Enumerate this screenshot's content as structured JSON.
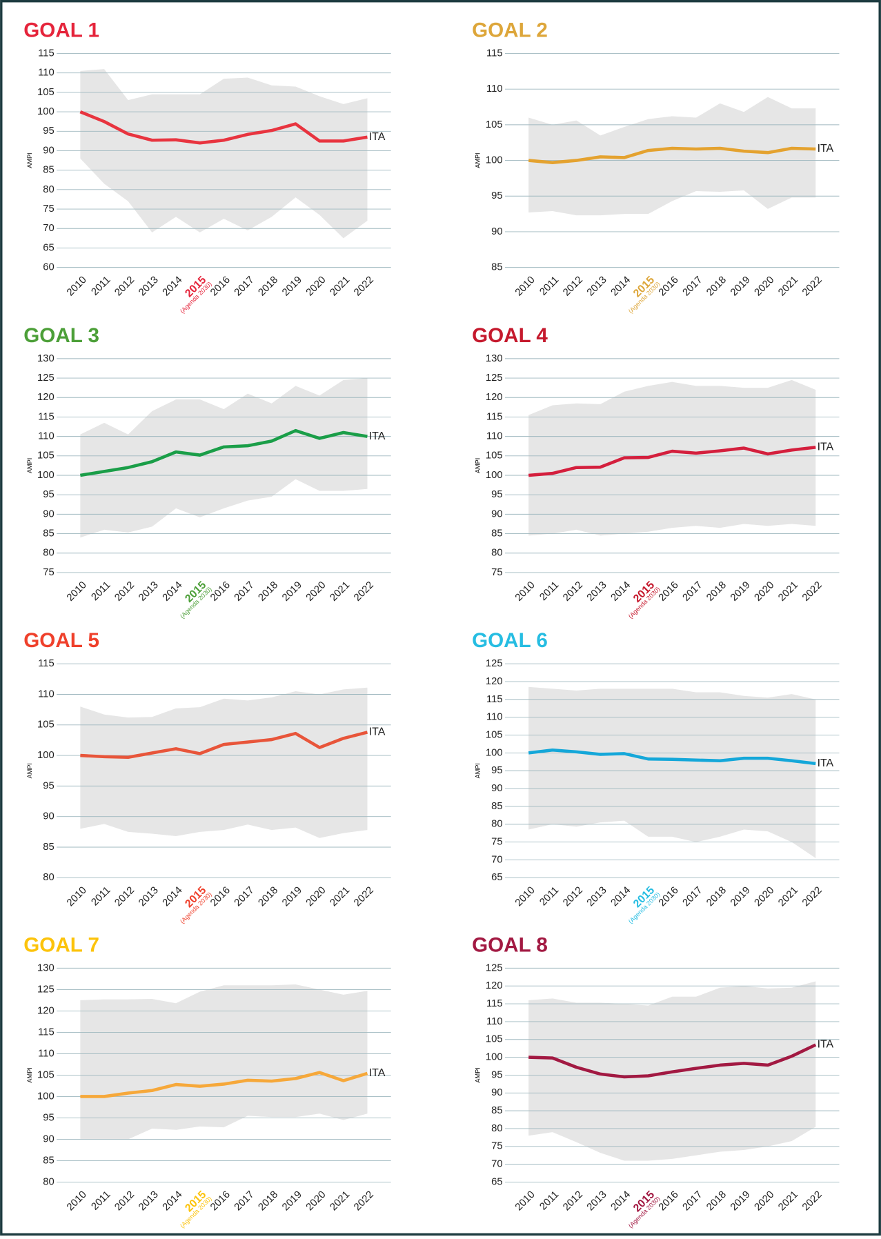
{
  "chart_data": [
    {
      "type": "line",
      "title": "GOAL 1",
      "color": "#e5243b",
      "y_label": "AMPI",
      "annotation": "(Agenda 2030)",
      "highlight": "2015",
      "categories": [
        "2010",
        "2011",
        "2012",
        "2013",
        "2014",
        "2015",
        "2016",
        "2017",
        "2018",
        "2019",
        "2020",
        "2021",
        "2022"
      ],
      "ylim": [
        60,
        115
      ],
      "yticks": [
        60,
        65,
        70,
        75,
        80,
        85,
        90,
        95,
        100,
        105,
        110,
        115
      ],
      "band": {
        "color": "#e6e6e6",
        "upper": [
          110.5,
          111,
          103,
          104.5,
          104.5,
          104.5,
          108.5,
          108.8,
          106.8,
          106.5,
          104,
          102,
          103.5
        ],
        "lower": [
          88,
          81.5,
          77,
          69,
          73,
          69,
          72.5,
          69.5,
          73,
          78,
          73.5,
          67.5,
          72
        ]
      },
      "series": [
        {
          "name": "ITA",
          "color": "#e8343f",
          "values": [
            100,
            97.5,
            94.3,
            92.7,
            92.8,
            92,
            92.7,
            94.2,
            95.2,
            96.9,
            92.5,
            92.5,
            93.5
          ]
        }
      ]
    },
    {
      "type": "line",
      "title": "GOAL 2",
      "color": "#dda63a",
      "y_label": "AMPI",
      "annotation": "(Agenda 2030)",
      "highlight": "2015",
      "categories": [
        "2010",
        "2011",
        "2012",
        "2013",
        "2014",
        "2015",
        "2016",
        "2017",
        "2018",
        "2019",
        "2020",
        "2021",
        "2022"
      ],
      "ylim": [
        85,
        115
      ],
      "yticks": [
        85,
        90,
        95,
        100,
        105,
        110,
        115
      ],
      "band": {
        "color": "#e6e6e6",
        "upper": [
          106,
          105,
          105.6,
          103.5,
          104.7,
          105.8,
          106.2,
          106,
          108,
          106.8,
          108.9,
          107.3,
          107.3
        ],
        "lower": [
          92.7,
          92.9,
          92.3,
          92.3,
          92.5,
          92.5,
          94.3,
          95.7,
          95.6,
          95.8,
          93.2,
          94.8,
          94.8
        ]
      },
      "series": [
        {
          "name": "ITA",
          "color": "#e4a22f",
          "values": [
            100,
            99.7,
            100,
            100.5,
            100.4,
            101.4,
            101.7,
            101.6,
            101.7,
            101.3,
            101.1,
            101.7,
            101.6
          ]
        }
      ]
    },
    {
      "type": "line",
      "title": "GOAL 3",
      "color": "#4c9f38",
      "y_label": "AMPI",
      "annotation": "(Agenda 2030)",
      "highlight": "2015",
      "categories": [
        "2010",
        "2011",
        "2012",
        "2013",
        "2014",
        "2015",
        "2016",
        "2017",
        "2018",
        "2019",
        "2020",
        "2021",
        "2022"
      ],
      "ylim": [
        75,
        130
      ],
      "yticks": [
        75,
        80,
        85,
        90,
        95,
        100,
        105,
        110,
        115,
        120,
        125,
        130
      ],
      "band": {
        "color": "#e6e6e6",
        "upper": [
          110.5,
          113.5,
          110.5,
          116.5,
          119.5,
          119.5,
          117,
          121,
          118.5,
          123,
          120.5,
          124.5,
          125
        ],
        "lower": [
          84,
          86,
          85.3,
          86.8,
          91.5,
          89.2,
          91.5,
          93.5,
          94.5,
          99,
          96,
          96,
          96.5
        ]
      },
      "series": [
        {
          "name": "ITA",
          "color": "#1a9e48",
          "values": [
            100,
            101,
            102,
            103.5,
            106,
            105.2,
            107.3,
            107.6,
            108.8,
            111.5,
            109.5,
            111,
            110
          ]
        }
      ]
    },
    {
      "type": "line",
      "title": "GOAL 4",
      "color": "#c5192d",
      "y_label": "AMPI",
      "annotation": "(Agenda 2030)",
      "highlight": "2015",
      "categories": [
        "2010",
        "2011",
        "2012",
        "2013",
        "2014",
        "2015",
        "2016",
        "2017",
        "2018",
        "2019",
        "2020",
        "2021",
        "2022"
      ],
      "ylim": [
        75,
        130
      ],
      "yticks": [
        75,
        80,
        85,
        90,
        95,
        100,
        105,
        110,
        115,
        120,
        125,
        130
      ],
      "band": {
        "color": "#e6e6e6",
        "upper": [
          115.5,
          118,
          118.5,
          118.3,
          121.5,
          123,
          124,
          123,
          123,
          122.5,
          122.5,
          124.5,
          122
        ],
        "lower": [
          84.5,
          85,
          86,
          84.5,
          85,
          85.5,
          86.5,
          87,
          86.5,
          87.5,
          87,
          87.5,
          87
        ]
      },
      "series": [
        {
          "name": "ITA",
          "color": "#d41f3d",
          "values": [
            100,
            100.5,
            102,
            102.1,
            104.5,
            104.6,
            106.2,
            105.7,
            106.3,
            107,
            105.5,
            106.5,
            107.2
          ]
        }
      ]
    },
    {
      "type": "line",
      "title": "GOAL 5",
      "color": "#ef402b",
      "y_label": "AMPI",
      "annotation": "(Agenda 2030)",
      "highlight": "2015",
      "categories": [
        "2010",
        "2011",
        "2012",
        "2013",
        "2014",
        "2015",
        "2016",
        "2017",
        "2018",
        "2019",
        "2020",
        "2021",
        "2022"
      ],
      "ylim": [
        80,
        115
      ],
      "yticks": [
        80,
        85,
        90,
        95,
        100,
        105,
        110,
        115
      ],
      "band": {
        "color": "#e6e6e6",
        "upper": [
          108,
          106.7,
          106.2,
          106.3,
          107.7,
          107.9,
          109.3,
          109,
          109.5,
          110.5,
          110,
          110.8,
          111.1
        ],
        "lower": [
          88,
          88.8,
          87.5,
          87.2,
          86.8,
          87.5,
          87.8,
          88.7,
          87.8,
          88.2,
          86.5,
          87.3,
          87.8
        ]
      },
      "series": [
        {
          "name": "ITA",
          "color": "#e8553a",
          "values": [
            100,
            99.8,
            99.7,
            100.4,
            101.1,
            100.3,
            101.8,
            102.2,
            102.6,
            103.6,
            101.3,
            102.8,
            103.8
          ]
        }
      ]
    },
    {
      "type": "line",
      "title": "GOAL 6",
      "color": "#26bde2",
      "y_label": "AMPI",
      "annotation": "(Agenda 2030)",
      "highlight": "2015",
      "categories": [
        "2010",
        "2011",
        "2012",
        "2013",
        "2014",
        "2015",
        "2016",
        "2017",
        "2018",
        "2019",
        "2020",
        "2021",
        "2022"
      ],
      "ylim": [
        65,
        125
      ],
      "yticks": [
        65,
        70,
        75,
        80,
        85,
        90,
        95,
        100,
        105,
        110,
        115,
        120,
        125
      ],
      "band": {
        "color": "#e6e6e6",
        "upper": [
          118.5,
          118,
          117.5,
          118,
          118,
          118,
          118,
          117,
          117,
          116,
          115.5,
          116.5,
          115
        ],
        "lower": [
          78.5,
          80,
          79.3,
          80.5,
          81,
          76.5,
          76.5,
          75,
          76.5,
          78.5,
          78,
          75,
          70.5
        ]
      },
      "series": [
        {
          "name": "ITA",
          "color": "#14a7d9",
          "values": [
            100,
            100.8,
            100.3,
            99.6,
            99.8,
            98.3,
            98.2,
            98,
            97.8,
            98.5,
            98.5,
            97.8,
            97
          ]
        }
      ]
    },
    {
      "type": "line",
      "title": "GOAL 7",
      "color": "#fcc30b",
      "y_label": "AMPI",
      "annotation": "(Agenda 2030)",
      "highlight": "2015",
      "categories": [
        "2010",
        "2011",
        "2012",
        "2013",
        "2014",
        "2015",
        "2016",
        "2017",
        "2018",
        "2019",
        "2020",
        "2021",
        "2022"
      ],
      "ylim": [
        80,
        130
      ],
      "yticks": [
        80,
        85,
        90,
        95,
        100,
        105,
        110,
        115,
        120,
        125,
        130
      ],
      "band": {
        "color": "#e6e6e6",
        "upper": [
          122.5,
          122.7,
          122.7,
          122.8,
          121.8,
          124.5,
          126,
          126,
          126,
          126.2,
          125,
          123.8,
          124.7
        ],
        "lower": [
          90,
          90,
          90,
          92.5,
          92.2,
          93,
          92.8,
          95.5,
          95.2,
          95.2,
          96,
          94.5,
          96
        ]
      },
      "series": [
        {
          "name": "ITA",
          "color": "#f6a83a",
          "values": [
            100,
            100,
            100.8,
            101.4,
            102.8,
            102.4,
            102.9,
            103.8,
            103.6,
            104.2,
            105.6,
            103.7,
            105.4
          ]
        }
      ]
    },
    {
      "type": "line",
      "title": "GOAL 8",
      "color": "#a21942",
      "y_label": "AMPI",
      "annotation": "(Agenda 2030)",
      "highlight": "2015",
      "categories": [
        "2010",
        "2011",
        "2012",
        "2013",
        "2014",
        "2015",
        "2016",
        "2017",
        "2018",
        "2019",
        "2020",
        "2021",
        "2022"
      ],
      "ylim": [
        65,
        125
      ],
      "yticks": [
        65,
        70,
        75,
        80,
        85,
        90,
        95,
        100,
        105,
        110,
        115,
        120,
        125
      ],
      "band": {
        "color": "#e6e6e6",
        "upper": [
          116,
          116.5,
          115.3,
          115.3,
          115,
          114.5,
          117,
          117,
          119.5,
          120,
          119.3,
          119.5,
          121.3
        ],
        "lower": [
          78,
          79,
          76.2,
          73.2,
          71,
          71,
          71.5,
          72.5,
          73.5,
          74,
          75,
          76.5,
          80.5
        ]
      },
      "series": [
        {
          "name": "ITA",
          "color": "#a21942",
          "values": [
            100,
            99.8,
            97.2,
            95.3,
            94.5,
            94.8,
            95.9,
            96.9,
            97.8,
            98.3,
            97.8,
            100.3,
            103.5
          ]
        }
      ]
    }
  ]
}
